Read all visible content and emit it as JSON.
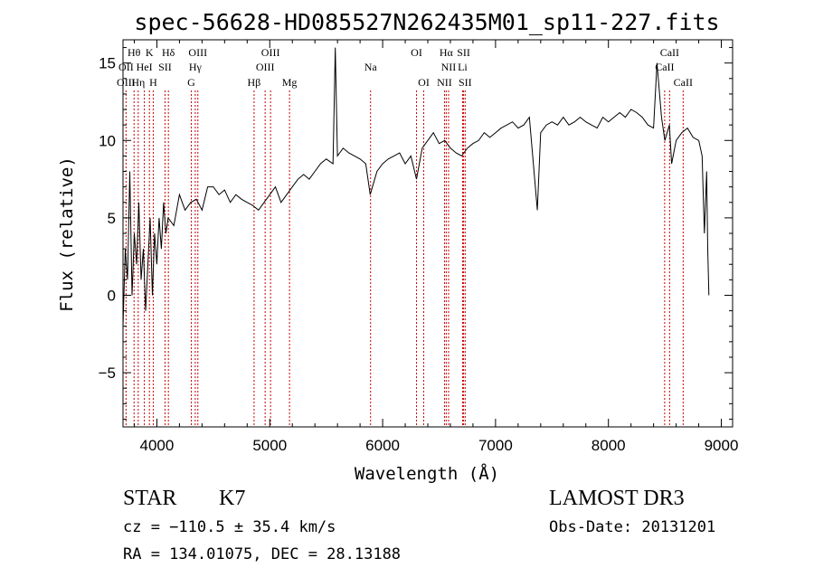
{
  "chart_data": {
    "type": "line",
    "title": "spec-56628-HD085527N262435M01_sp11-227.fits",
    "xlabel": "Wavelength (Å)",
    "ylabel": "Flux (relative)",
    "xlim": [
      3700,
      9100
    ],
    "ylim": [
      -8.5,
      16.5
    ],
    "x_ticks": [
      4000,
      5000,
      6000,
      7000,
      8000,
      9000
    ],
    "x_tick_labels": [
      "4000",
      "5000",
      "6000",
      "7000",
      "8000",
      "9000"
    ],
    "y_ticks": [
      -5,
      0,
      5,
      10,
      15
    ],
    "y_tick_labels": [
      "−5",
      "0",
      "5",
      "10",
      "15"
    ],
    "line_color": "#000000",
    "marker_color": "#cc0000",
    "series": [
      {
        "name": "flux",
        "x": [
          3700,
          3720,
          3740,
          3760,
          3780,
          3800,
          3820,
          3840,
          3860,
          3880,
          3900,
          3920,
          3940,
          3960,
          3980,
          4000,
          4020,
          4040,
          4060,
          4080,
          4100,
          4150,
          4200,
          4250,
          4300,
          4350,
          4400,
          4450,
          4500,
          4550,
          4600,
          4650,
          4700,
          4750,
          4800,
          4850,
          4900,
          4950,
          5000,
          5050,
          5100,
          5150,
          5200,
          5250,
          5300,
          5350,
          5400,
          5450,
          5500,
          5560,
          5580,
          5600,
          5650,
          5700,
          5750,
          5800,
          5850,
          5890,
          5950,
          6000,
          6050,
          6100,
          6150,
          6200,
          6250,
          6300,
          6350,
          6400,
          6450,
          6500,
          6550,
          6600,
          6650,
          6700,
          6750,
          6800,
          6850,
          6900,
          6950,
          7000,
          7050,
          7100,
          7150,
          7200,
          7250,
          7300,
          7370,
          7400,
          7450,
          7500,
          7550,
          7600,
          7650,
          7700,
          7750,
          7800,
          7850,
          7900,
          7950,
          8000,
          8050,
          8100,
          8150,
          8200,
          8250,
          8300,
          8350,
          8400,
          8430,
          8470,
          8500,
          8540,
          8560,
          8600,
          8650,
          8700,
          8750,
          8800,
          8830,
          8850,
          8870,
          8880,
          8890
        ],
        "y": [
          -2,
          3,
          1,
          8,
          0,
          4,
          2,
          6,
          1,
          3,
          -1,
          2,
          5,
          0,
          4,
          2,
          5,
          3,
          6,
          4,
          5,
          4.5,
          6.5,
          5.5,
          6,
          6.2,
          5.5,
          7,
          7,
          6.5,
          6.8,
          6,
          6.5,
          6.2,
          6,
          5.8,
          5.5,
          6,
          6.5,
          7,
          6,
          6.5,
          7,
          7.5,
          7.8,
          7.5,
          8,
          8.5,
          8.8,
          8.5,
          16,
          9,
          9.5,
          9.2,
          9,
          8.8,
          8.5,
          6.5,
          8,
          8.5,
          8.8,
          9,
          9.2,
          8.5,
          9,
          7.5,
          9.5,
          10,
          10.5,
          9.8,
          10,
          9.5,
          9.2,
          9,
          9.5,
          9.8,
          10,
          10.5,
          10.2,
          10.5,
          10.8,
          11,
          11.2,
          10.8,
          11,
          11.5,
          5.5,
          10.5,
          11,
          11.2,
          11,
          11.5,
          11,
          11.2,
          11.5,
          11.2,
          11,
          10.8,
          11.5,
          11.2,
          11.5,
          11.8,
          11.5,
          12,
          11.8,
          11.5,
          11,
          10.8,
          15,
          11.5,
          10,
          11,
          8.5,
          10,
          10.5,
          10.8,
          10.2,
          10,
          9,
          4,
          8,
          3,
          0
        ]
      }
    ],
    "spectral_lines": [
      {
        "label": "Hθ",
        "x": 3798,
        "row": 1
      },
      {
        "label": "K",
        "x": 3934,
        "row": 1
      },
      {
        "label": "Hδ",
        "x": 4102,
        "row": 1
      },
      {
        "label": "OIII",
        "x": 4363,
        "row": 1
      },
      {
        "label": "OIII",
        "x": 5007,
        "row": 1
      },
      {
        "label": "OI",
        "x": 6300,
        "row": 1
      },
      {
        "label": "Hα",
        "x": 6563,
        "row": 1
      },
      {
        "label": "SII",
        "x": 6717,
        "row": 1
      },
      {
        "label": "CaII",
        "x": 8542,
        "row": 1
      },
      {
        "label": "OII",
        "x": 3727,
        "row": 2
      },
      {
        "label": "HeI",
        "x": 3889,
        "row": 2
      },
      {
        "label": "SII",
        "x": 4072,
        "row": 2
      },
      {
        "label": "Hγ",
        "x": 4340,
        "row": 2
      },
      {
        "label": "OIII",
        "x": 4959,
        "row": 2
      },
      {
        "label": "Na",
        "x": 5893,
        "row": 2
      },
      {
        "label": "NII",
        "x": 6584,
        "row": 2
      },
      {
        "label": "Li",
        "x": 6708,
        "row": 2
      },
      {
        "label": "CaII",
        "x": 8498,
        "row": 2
      },
      {
        "label": "OIII",
        "x": 3727,
        "row": 3
      },
      {
        "label": "Hη",
        "x": 3835,
        "row": 3
      },
      {
        "label": "H",
        "x": 3968,
        "row": 3
      },
      {
        "label": "G",
        "x": 4305,
        "row": 3
      },
      {
        "label": "Hβ",
        "x": 4861,
        "row": 3
      },
      {
        "label": "Mg",
        "x": 5175,
        "row": 3
      },
      {
        "label": "OI",
        "x": 6364,
        "row": 3
      },
      {
        "label": "NII",
        "x": 6548,
        "row": 3
      },
      {
        "label": "SII",
        "x": 6731,
        "row": 3
      },
      {
        "label": "CaII",
        "x": 8662,
        "row": 3
      }
    ]
  },
  "info": {
    "object_class": "STAR",
    "subclass": "K7",
    "cz": "cz = −110.5 ± 35.4 km/s",
    "coords": "RA = 134.01075, DEC =  28.13188",
    "survey": "LAMOST DR3",
    "obs_date": "Obs-Date: 20131201"
  }
}
